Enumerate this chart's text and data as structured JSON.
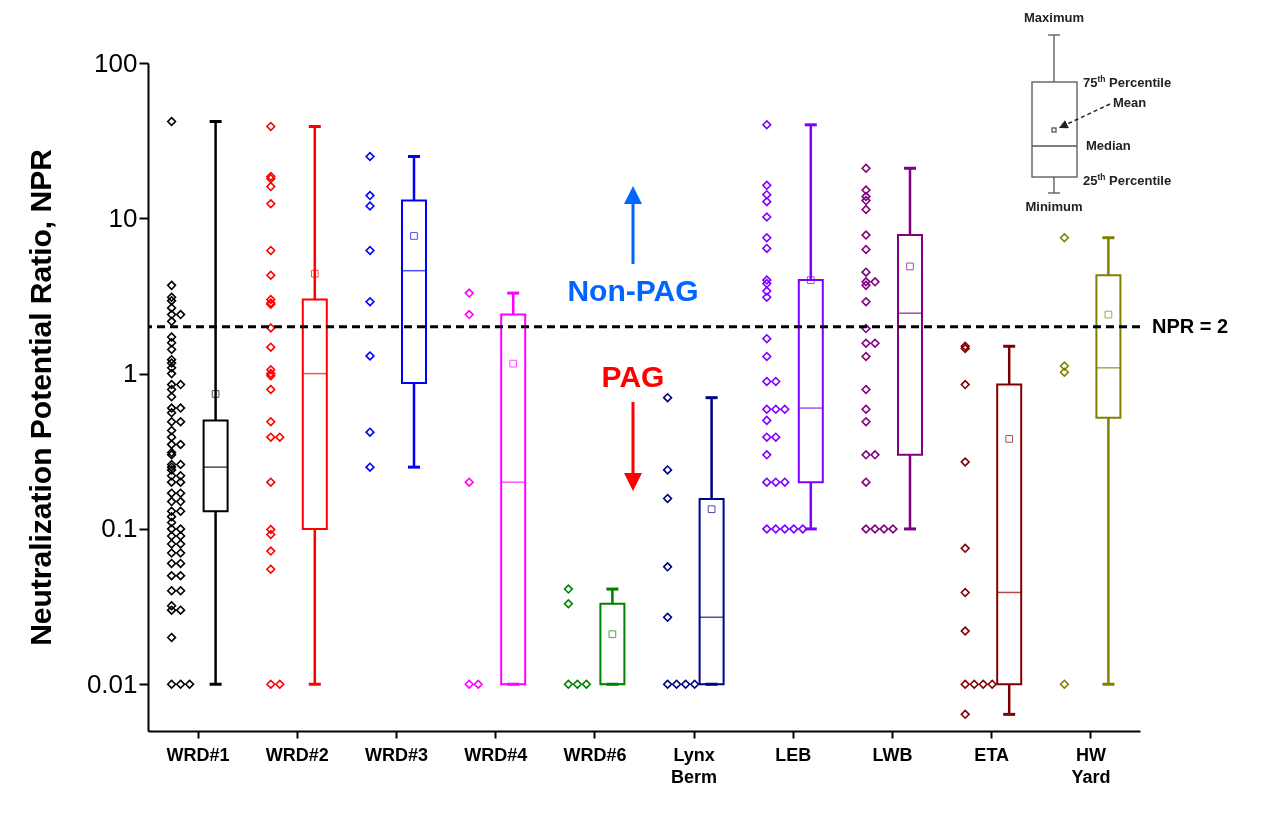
{
  "chart_data": {
    "type": "box",
    "ylabel": "Neutralization Potential Ratio, NPR",
    "log": "y",
    "ylim": [
      0.005,
      100
    ],
    "yticks": [
      0.01,
      0.1,
      1,
      10,
      100
    ],
    "grid": false,
    "marker": "diamond",
    "categories": [
      "WRD#1",
      "WRD#2",
      "WRD#3",
      "WRD#4",
      "WRD#6",
      "Lynx Berm",
      "LEB",
      "LWB",
      "ETA",
      "HW Yard"
    ],
    "colors": [
      "#000000",
      "#ff0000",
      "#0000ff",
      "#ff00ff",
      "#008000",
      "#000080",
      "#8000ff",
      "#800080",
      "#800000",
      "#808000"
    ],
    "boxes": [
      {
        "low": 0.01,
        "q1": 0.13,
        "median": 0.25,
        "q3": 0.5,
        "high": 42,
        "mean": 0.74
      },
      {
        "low": 0.01,
        "q1": 0.1,
        "median": 1,
        "q3": 3,
        "high": 39,
        "mean": 4.4
      },
      {
        "low": 0.25,
        "q1": 0.87,
        "median": 4.6,
        "q3": 13,
        "high": 25,
        "mean": 7.7
      },
      {
        "low": 0.01,
        "q1": 0.01,
        "median": 0.2,
        "q3": 2.4,
        "high": 3.3,
        "mean": 1.16
      },
      {
        "low": 0.01,
        "q1": 0.01,
        "median": 0.01,
        "q3": 0.033,
        "high": 0.041,
        "mean": 0.021
      },
      {
        "low": 0.01,
        "q1": 0.01,
        "median": 0.027,
        "q3": 0.156,
        "high": 0.7,
        "mean": 0.134
      },
      {
        "low": 0.1,
        "q1": 0.2,
        "median": 0.6,
        "q3": 4,
        "high": 40,
        "mean": 4
      },
      {
        "low": 0.1,
        "q1": 0.3,
        "median": 2.45,
        "q3": 7.8,
        "high": 21,
        "mean": 4.9
      },
      {
        "low": 0.0064,
        "q1": 0.01,
        "median": 0.039,
        "q3": 0.85,
        "high": 1.5,
        "mean": 0.38
      },
      {
        "low": 0.01,
        "q1": 0.52,
        "median": 1.09,
        "q3": 4.3,
        "high": 7.5,
        "mean": 2.4
      }
    ],
    "series": [
      {
        "type": "scatter",
        "color": "#000000",
        "x": [
          "WRD#1",
          "WRD#1",
          "WRD#1",
          "WRD#1",
          "WRD#1",
          "WRD#1",
          "WRD#1",
          "WRD#1",
          "WRD#1",
          "WRD#1",
          "WRD#1",
          "WRD#1",
          "WRD#1",
          "WRD#1",
          "WRD#1",
          "WRD#1",
          "WRD#1",
          "WRD#1",
          "WRD#1",
          "WRD#1",
          "WRD#1",
          "WRD#1",
          "WRD#1",
          "WRD#1",
          "WRD#1",
          "WRD#1",
          "WRD#1",
          "WRD#1",
          "WRD#1",
          "WRD#1",
          "WRD#1",
          "WRD#1",
          "WRD#1",
          "WRD#1",
          "WRD#1",
          "WRD#1",
          "WRD#1",
          "WRD#1",
          "WRD#1",
          "WRD#1",
          "WRD#1",
          "WRD#1",
          "WRD#1",
          "WRD#1",
          "WRD#1",
          "WRD#1",
          "WRD#1",
          "WRD#1",
          "WRD#1",
          "WRD#1",
          "WRD#1",
          "WRD#1",
          "WRD#1",
          "WRD#1",
          "WRD#1",
          "WRD#1",
          "WRD#1",
          "WRD#1",
          "WRD#1",
          "WRD#1",
          "WRD#1",
          "WRD#1",
          "WRD#1",
          "WRD#1",
          "WRD#1",
          "WRD#1",
          "WRD#1"
        ],
        "values": [
          42,
          3.7,
          3.1,
          2.95,
          2.65,
          2.4,
          2.4,
          2.17,
          1.72,
          1.58,
          1.43,
          1.23,
          1.17,
          1.09,
          1.0,
          0.85,
          0.85,
          0.79,
          0.71,
          0.6,
          0.6,
          0.56,
          0.49,
          0.49,
          0.43,
          0.39,
          0.35,
          0.35,
          0.31,
          0.3,
          0.26,
          0.26,
          0.25,
          0.24,
          0.22,
          0.22,
          0.2,
          0.2,
          0.17,
          0.17,
          0.15,
          0.15,
          0.13,
          0.13,
          0.12,
          0.11,
          0.1,
          0.1,
          0.09,
          0.09,
          0.08,
          0.08,
          0.07,
          0.07,
          0.06,
          0.06,
          0.05,
          0.05,
          0.04,
          0.04,
          0.032,
          0.03,
          0.03,
          0.02,
          0.01,
          0.01,
          0.01
        ]
      },
      {
        "type": "scatter",
        "color": "#ff0000",
        "x": [
          "WRD#2",
          "WRD#2",
          "WRD#2",
          "WRD#2",
          "WRD#2",
          "WRD#2",
          "WRD#2",
          "WRD#2",
          "WRD#2",
          "WRD#2",
          "WRD#2",
          "WRD#2",
          "WRD#2",
          "WRD#2",
          "WRD#2",
          "WRD#2",
          "WRD#2",
          "WRD#2",
          "WRD#2",
          "WRD#2",
          "WRD#2",
          "WRD#2",
          "WRD#2",
          "WRD#2",
          "WRD#2",
          "WRD#2"
        ],
        "values": [
          39,
          18.6,
          18,
          16,
          12.4,
          6.2,
          4.3,
          3.0,
          2.85,
          2.8,
          1.97,
          1.48,
          1.06,
          1.0,
          0.97,
          0.79,
          0.49,
          0.39,
          0.39,
          0.2,
          0.099,
          0.092,
          0.072,
          0.055,
          0.01,
          0.01
        ]
      },
      {
        "type": "scatter",
        "color": "#0000ff",
        "x": [
          "WRD#3",
          "WRD#3",
          "WRD#3",
          "WRD#3",
          "WRD#3",
          "WRD#3",
          "WRD#3",
          "WRD#3"
        ],
        "values": [
          25,
          14,
          12,
          6.2,
          2.9,
          1.3,
          0.42,
          0.25
        ]
      },
      {
        "type": "scatter",
        "color": "#ff00ff",
        "x": [
          "WRD#4",
          "WRD#4",
          "WRD#4",
          "WRD#4",
          "WRD#4"
        ],
        "values": [
          3.3,
          2.4,
          0.2,
          0.01,
          0.01
        ]
      },
      {
        "type": "scatter",
        "color": "#008000",
        "x": [
          "WRD#6",
          "WRD#6",
          "WRD#6",
          "WRD#6",
          "WRD#6"
        ],
        "values": [
          0.041,
          0.033,
          0.01,
          0.01,
          0.01
        ]
      },
      {
        "type": "scatter",
        "color": "#000080",
        "x": [
          "Lynx Berm",
          "Lynx Berm",
          "Lynx Berm",
          "Lynx Berm",
          "Lynx Berm",
          "Lynx Berm",
          "Lynx Berm",
          "Lynx Berm",
          "Lynx Berm"
        ],
        "values": [
          0.7,
          0.24,
          0.157,
          0.057,
          0.027,
          0.01,
          0.01,
          0.01,
          0.01
        ]
      },
      {
        "type": "scatter",
        "color": "#8000ff",
        "x": [
          "LEB",
          "LEB",
          "LEB",
          "LEB",
          "LEB",
          "LEB",
          "LEB",
          "LEB",
          "LEB",
          "LEB",
          "LEB",
          "LEB",
          "LEB",
          "LEB",
          "LEB",
          "LEB",
          "LEB",
          "LEB",
          "LEB",
          "LEB",
          "LEB",
          "LEB",
          "LEB",
          "LEB",
          "LEB",
          "LEB",
          "LEB",
          "LEB",
          "LEB",
          "LEB"
        ],
        "values": [
          40,
          16.3,
          14.2,
          12.8,
          10.2,
          7.5,
          6.4,
          4.0,
          3.8,
          3.4,
          3.1,
          1.68,
          1.29,
          0.89,
          0.89,
          0.59,
          0.59,
          0.59,
          0.5,
          0.39,
          0.39,
          0.3,
          0.2,
          0.2,
          0.2,
          0.1,
          0.1,
          0.1,
          0.1,
          0.1
        ]
      },
      {
        "type": "scatter",
        "color": "#800080",
        "x": [
          "LWB",
          "LWB",
          "LWB",
          "LWB",
          "LWB",
          "LWB",
          "LWB",
          "LWB",
          "LWB",
          "LWB",
          "LWB",
          "LWB",
          "LWB",
          "LWB",
          "LWB",
          "LWB",
          "LWB",
          "LWB",
          "LWB",
          "LWB",
          "LWB",
          "LWB",
          "LWB",
          "LWB",
          "LWB",
          "LWB"
        ],
        "values": [
          21,
          15.2,
          13.8,
          13,
          11.4,
          7.8,
          6.3,
          4.5,
          3.9,
          3.9,
          3.7,
          2.9,
          1.95,
          1.57,
          1.57,
          1.29,
          0.79,
          0.59,
          0.49,
          0.3,
          0.3,
          0.2,
          0.1,
          0.1,
          0.1,
          0.1
        ]
      },
      {
        "type": "scatter",
        "color": "#800000",
        "x": [
          "ETA",
          "ETA",
          "ETA",
          "ETA",
          "ETA",
          "ETA",
          "ETA",
          "ETA",
          "ETA",
          "ETA",
          "ETA",
          "ETA"
        ],
        "values": [
          1.5,
          1.45,
          0.85,
          0.27,
          0.075,
          0.039,
          0.022,
          0.01,
          0.01,
          0.01,
          0.01,
          0.0064
        ]
      },
      {
        "type": "scatter",
        "color": "#808000",
        "x": [
          "HW Yard",
          "HW Yard",
          "HW Yard",
          "HW Yard"
        ],
        "values": [
          7.5,
          1.12,
          1.02,
          0.01
        ]
      }
    ],
    "ref_lines": [
      {
        "axis": "y",
        "value": 2,
        "label": "NPR = 2",
        "line_style": "dashed",
        "color": "#000000"
      }
    ],
    "annotations": [
      "Non-PAG",
      "PAG",
      "Maximum",
      "75$^{th}$ Percentile",
      "Mean",
      "Median",
      "25$^{th}$ Percentile",
      "Minimum"
    ]
  }
}
